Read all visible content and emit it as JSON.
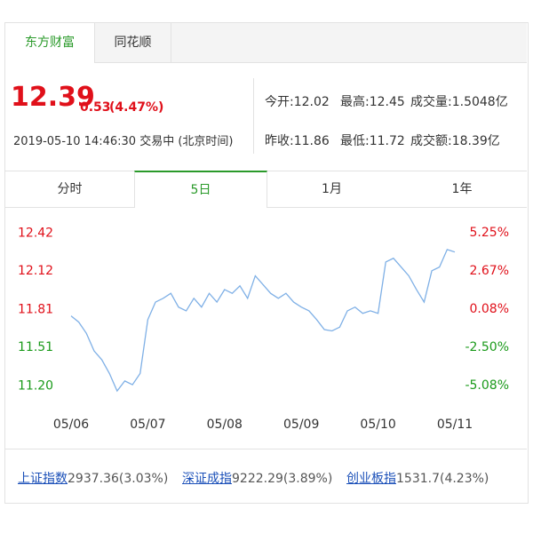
{
  "tabs": [
    "东方财富",
    "同花顺"
  ],
  "quote": {
    "price": "12.39",
    "change": "0.53",
    "change_pct": "(4.47%)",
    "time": "2019-05-10 14:46:30 交易中 (北京时间)"
  },
  "stats": [
    [
      "今开:12.02",
      "最高:12.45",
      "成交量:1.5048亿"
    ],
    [
      "昨收:11.86",
      "最低:11.72",
      "成交额:18.39亿"
    ]
  ],
  "periods": [
    "分时",
    "5日",
    "1月",
    "1年"
  ],
  "chart_data": {
    "type": "line",
    "categories": [
      "05/06",
      null,
      null,
      null,
      null,
      null,
      null,
      null,
      null,
      null,
      "05/07",
      null,
      null,
      null,
      null,
      null,
      null,
      null,
      null,
      null,
      "05/08",
      null,
      null,
      null,
      null,
      null,
      null,
      null,
      null,
      null,
      "05/09",
      null,
      null,
      null,
      null,
      null,
      null,
      null,
      null,
      null,
      "05/10",
      null,
      null,
      null,
      null,
      null,
      null,
      null,
      null,
      null,
      "05/11"
    ],
    "values": [
      11.76,
      11.71,
      11.62,
      11.48,
      11.41,
      11.3,
      11.16,
      11.24,
      11.21,
      11.3,
      11.73,
      11.87,
      11.9,
      11.94,
      11.83,
      11.8,
      11.9,
      11.83,
      11.94,
      11.87,
      11.97,
      11.94,
      12.0,
      11.9,
      12.08,
      12.01,
      11.94,
      11.9,
      11.94,
      11.87,
      11.83,
      11.8,
      11.73,
      11.65,
      11.64,
      11.67,
      11.8,
      11.83,
      11.78,
      11.8,
      11.78,
      12.19,
      12.22,
      12.15,
      12.08,
      11.97,
      11.87,
      12.12,
      12.15,
      12.29,
      12.27
    ],
    "color": "#7fb0e6",
    "ylim": [
      11.09,
      12.58
    ],
    "yticks": [
      {
        "value": 11.2,
        "label": "11.20",
        "color": "#1a9a1a"
      },
      {
        "value": 11.51,
        "label": "11.51",
        "color": "#1a9a1a"
      },
      {
        "value": 11.81,
        "label": "11.81",
        "color": "#e0101a"
      },
      {
        "value": 12.12,
        "label": "12.12",
        "color": "#e0101a"
      },
      {
        "value": 12.42,
        "label": "12.42",
        "color": "#e0101a"
      }
    ],
    "y2lim": [
      -6.04,
      6.57
    ],
    "y2ticks": [
      {
        "value": -5.08,
        "label": "-5.08%",
        "color": "#1a9a1a"
      },
      {
        "value": -2.5,
        "label": "-2.50%",
        "color": "#1a9a1a"
      },
      {
        "value": 0.08,
        "label": "0.08%",
        "color": "#e0101a"
      },
      {
        "value": 2.67,
        "label": "2.67%",
        "color": "#e0101a"
      },
      {
        "value": 5.25,
        "label": "5.25%",
        "color": "#e0101a"
      }
    ]
  },
  "indices": [
    {
      "name": "上证指数",
      "value": "2937.36(3.03%)"
    },
    {
      "name": "深证成指",
      "value": "9222.29(3.89%)"
    },
    {
      "name": "创业板指",
      "value": "1531.7(4.23%)"
    }
  ]
}
